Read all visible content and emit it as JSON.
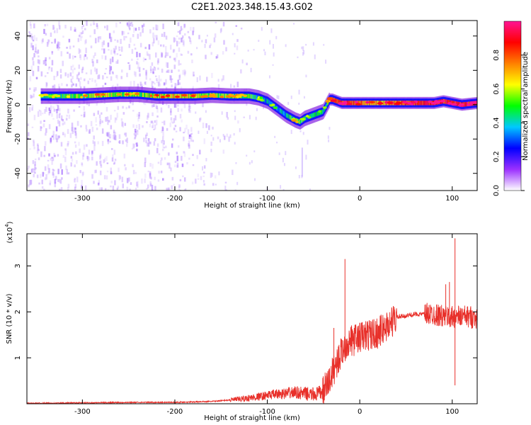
{
  "title": "C2E1.2023.348.15.43.G02",
  "chart_data": [
    {
      "type": "heatmap",
      "xlabel": "Height of straight line (km)",
      "ylabel": "Frequency (Hz)",
      "xlim": [
        -360,
        127
      ],
      "ylim": [
        -50,
        49
      ],
      "xticks": [
        -300,
        -200,
        -100,
        0,
        100
      ],
      "yticks": [
        -40,
        -20,
        0,
        20,
        40
      ],
      "colorbar": {
        "label": "Normalized spectral amplitude",
        "range": [
          0,
          1
        ],
        "ticks": [
          "0.0",
          "0.2",
          "0.4",
          "0.6",
          "0.8"
        ],
        "colormap": [
          "#ffffff",
          "#9b30ff",
          "#0000ff",
          "#00c8ff",
          "#00ff00",
          "#ffff00",
          "#ff8000",
          "#ff0000",
          "#ff1493"
        ],
        "placement": "right"
      },
      "ridge": {
        "x": [
          -345,
          -320,
          -300,
          -280,
          -260,
          -240,
          -220,
          -200,
          -180,
          -160,
          -140,
          -120,
          -110,
          -100,
          -90,
          -80,
          -70,
          -65,
          -60,
          -50,
          -40,
          -33,
          -30,
          -20,
          0,
          20,
          40,
          60,
          80,
          90,
          100,
          110,
          127
        ],
        "y": [
          5,
          5,
          5,
          5.5,
          6,
          6,
          5,
          5,
          5,
          5.5,
          5,
          5,
          4,
          2,
          -2,
          -6,
          -9,
          -10,
          -8,
          -6,
          -4,
          3,
          3,
          1,
          1,
          1,
          1,
          1,
          1,
          2,
          1,
          0,
          1
        ],
        "amplitude": [
          0.4,
          0.5,
          0.5,
          0.6,
          0.55,
          0.55,
          0.6,
          0.65,
          0.6,
          0.55,
          0.55,
          0.5,
          0.4,
          0.35,
          0.35,
          0.4,
          0.5,
          0.55,
          0.4,
          0.4,
          0.4,
          0.55,
          0.8,
          0.85,
          0.75,
          0.7,
          0.75,
          0.85,
          0.9,
          0.85,
          0.9,
          0.85,
          0.9
        ]
      },
      "noise_region": [
        -360,
        -180
      ]
    },
    {
      "type": "line",
      "xlabel": "Height of straight line (km)",
      "ylabel": "SNR (10 * v/v)",
      "yscale_label": "(x10",
      "yscale_exp": "4",
      "xlim": [
        -360,
        127
      ],
      "ylim": [
        0,
        3.7
      ],
      "xticks": [
        -300,
        -200,
        -100,
        0,
        100
      ],
      "yticks": [
        1,
        2,
        3
      ],
      "series": [
        {
          "color": "#e8302a",
          "x": [
            -360,
            -300,
            -250,
            -200,
            -160,
            -130,
            -110,
            -95,
            -80,
            -70,
            -60,
            -50,
            -40,
            -33,
            -25,
            -15,
            0,
            10,
            20,
            30,
            40,
            60,
            80,
            90,
            100,
            110,
            127
          ],
          "y": [
            0.01,
            0.02,
            0.03,
            0.03,
            0.05,
            0.1,
            0.15,
            0.2,
            0.22,
            0.25,
            0.22,
            0.2,
            0.25,
            0.5,
            0.9,
            1.3,
            1.45,
            1.5,
            1.55,
            1.7,
            1.88,
            1.95,
            1.95,
            1.9,
            1.88,
            1.9,
            1.88
          ],
          "spikes": [
            {
              "x": -16,
              "y": 3.15
            },
            {
              "x": -28,
              "y": 1.65
            },
            {
              "x": 75,
              "y": 2.15
            },
            {
              "x": 93,
              "y": 2.6
            },
            {
              "x": 97,
              "y": 2.65
            },
            {
              "x": 103,
              "y": 3.6
            },
            {
              "x": 103,
              "y": 0.4
            }
          ]
        }
      ]
    }
  ]
}
